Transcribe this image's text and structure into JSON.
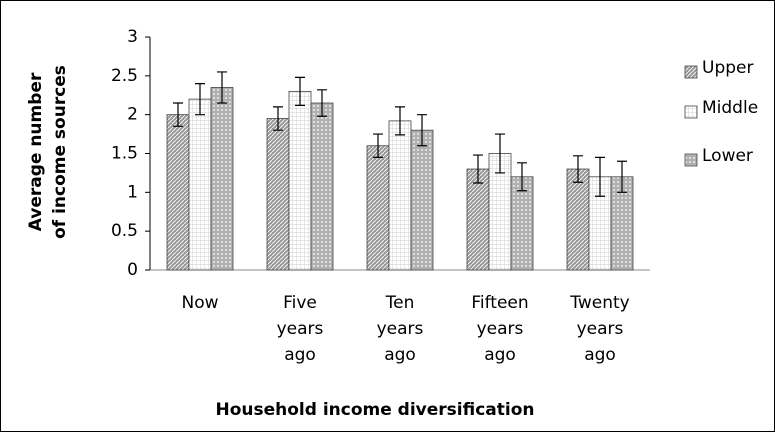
{
  "chart_data": {
    "type": "bar",
    "y_label": [
      "Average number",
      "of income sources"
    ],
    "x_label": "Household income diversification",
    "categories": [
      "Now",
      "Five years ago",
      "Ten years ago",
      "Fifteen years ago",
      "Twenty years ago"
    ],
    "series": [
      {
        "name": "Upper",
        "color": "#9a9a9a",
        "values": [
          2.0,
          1.95,
          1.6,
          1.3,
          1.3
        ],
        "errors": [
          0.15,
          0.15,
          0.15,
          0.18,
          0.17
        ]
      },
      {
        "name": "Middle",
        "color": "#d8d8d8",
        "values": [
          2.2,
          2.3,
          1.92,
          1.5,
          1.2
        ],
        "errors": [
          0.2,
          0.18,
          0.18,
          0.25,
          0.25
        ]
      },
      {
        "name": "Lower",
        "color": "#b0b0b0",
        "values": [
          2.35,
          2.15,
          1.8,
          1.2,
          1.2
        ],
        "errors": [
          0.2,
          0.17,
          0.2,
          0.18,
          0.2
        ]
      }
    ],
    "ylim": [
      0,
      3
    ],
    "yticks": [
      0,
      0.5,
      1,
      1.5,
      2,
      2.5,
      3
    ],
    "grid": false,
    "legend": "right"
  }
}
